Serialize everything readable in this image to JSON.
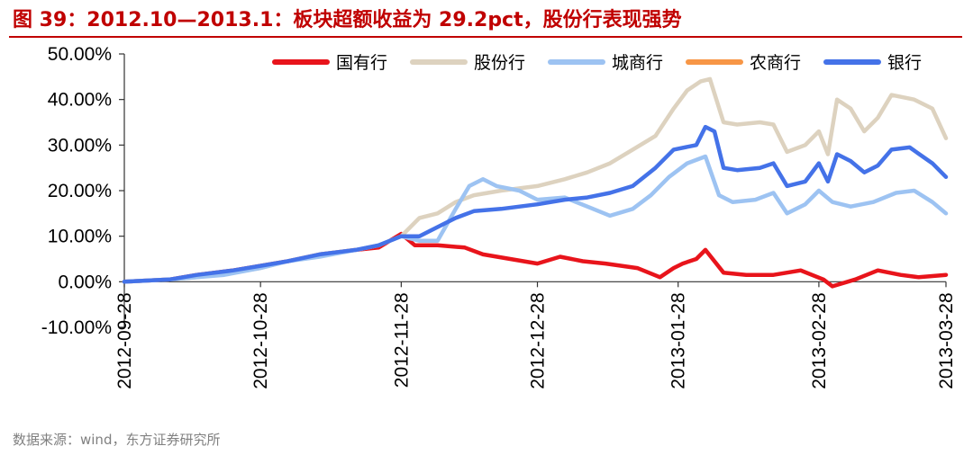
{
  "title": "图 39：2012.10—2013.1：板块超额收益为 29.2pct，股份行表现强势",
  "source": "数据来源：wind，东方证券研究所",
  "chart_data": {
    "type": "line",
    "x_ticks": [
      "2012-09-28",
      "2012-10-28",
      "2012-11-28",
      "2012-12-28",
      "2013-01-28",
      "2013-02-28",
      "2013-03-28"
    ],
    "y_ticks": [
      "-10.00%",
      "0.00%",
      "10.00%",
      "20.00%",
      "30.00%",
      "40.00%",
      "50.00%"
    ],
    "ylim": [
      -10,
      50
    ],
    "x_range": [
      "2012-09-28",
      "2013-03-28"
    ],
    "legend_position": "top",
    "series": [
      {
        "name": "国有行",
        "color": "#e8141b",
        "points": [
          [
            "2012-09-28",
            0
          ],
          [
            "2012-10-08",
            0.5
          ],
          [
            "2012-10-14",
            1.5
          ],
          [
            "2012-10-22",
            2.5
          ],
          [
            "2012-10-28",
            3.5
          ],
          [
            "2012-11-03",
            4.5
          ],
          [
            "2012-11-10",
            6
          ],
          [
            "2012-11-18",
            7
          ],
          [
            "2012-11-23",
            7.5
          ],
          [
            "2012-11-28",
            10.5
          ],
          [
            "2012-12-01",
            8
          ],
          [
            "2012-12-06",
            8
          ],
          [
            "2012-12-12",
            7.5
          ],
          [
            "2012-12-16",
            6
          ],
          [
            "2012-12-22",
            5
          ],
          [
            "2012-12-28",
            4
          ],
          [
            "2013-01-02",
            5.5
          ],
          [
            "2013-01-07",
            4.5
          ],
          [
            "2013-01-12",
            4
          ],
          [
            "2013-01-19",
            3
          ],
          [
            "2013-01-24",
            1
          ],
          [
            "2013-01-27",
            3
          ],
          [
            "2013-01-29",
            4
          ],
          [
            "2013-02-01",
            5
          ],
          [
            "2013-02-03",
            7
          ],
          [
            "2013-02-07",
            2
          ],
          [
            "2013-02-12",
            1.5
          ],
          [
            "2013-02-18",
            1.5
          ],
          [
            "2013-02-24",
            2.5
          ],
          [
            "2013-03-01",
            0.5
          ],
          [
            "2013-03-03",
            -1
          ],
          [
            "2013-03-08",
            0.5
          ],
          [
            "2013-03-13",
            2.5
          ],
          [
            "2013-03-18",
            1.5
          ],
          [
            "2013-03-22",
            1
          ],
          [
            "2013-03-28",
            1.5
          ]
        ]
      },
      {
        "name": "股份行",
        "color": "#ddd2bf",
        "points": [
          [
            "2012-09-28",
            0
          ],
          [
            "2012-10-08",
            0.5
          ],
          [
            "2012-10-14",
            1
          ],
          [
            "2012-10-22",
            2
          ],
          [
            "2012-10-28",
            3
          ],
          [
            "2012-11-03",
            4.5
          ],
          [
            "2012-11-10",
            6
          ],
          [
            "2012-11-18",
            7
          ],
          [
            "2012-11-23",
            8
          ],
          [
            "2012-11-28",
            10
          ],
          [
            "2012-12-02",
            14
          ],
          [
            "2012-12-06",
            15
          ],
          [
            "2012-12-10",
            17.5
          ],
          [
            "2012-12-14",
            19
          ],
          [
            "2012-12-20",
            20
          ],
          [
            "2012-12-28",
            21
          ],
          [
            "2013-01-03",
            22.5
          ],
          [
            "2013-01-08",
            24
          ],
          [
            "2013-01-13",
            26
          ],
          [
            "2013-01-18",
            29
          ],
          [
            "2013-01-23",
            32
          ],
          [
            "2013-01-27",
            38
          ],
          [
            "2013-01-30",
            42
          ],
          [
            "2013-02-02",
            44
          ],
          [
            "2013-02-04",
            44.5
          ],
          [
            "2013-02-07",
            35
          ],
          [
            "2013-02-10",
            34.5
          ],
          [
            "2013-02-15",
            35
          ],
          [
            "2013-02-18",
            34.5
          ],
          [
            "2013-02-21",
            28.5
          ],
          [
            "2013-02-25",
            30
          ],
          [
            "2013-02-28",
            33
          ],
          [
            "2013-03-02",
            28
          ],
          [
            "2013-03-04",
            40
          ],
          [
            "2013-03-07",
            38
          ],
          [
            "2013-03-10",
            33
          ],
          [
            "2013-03-13",
            36
          ],
          [
            "2013-03-16",
            41
          ],
          [
            "2013-03-21",
            40
          ],
          [
            "2013-03-25",
            38
          ],
          [
            "2013-03-28",
            31.5
          ]
        ]
      },
      {
        "name": "城商行",
        "color": "#9dc3f2",
        "points": [
          [
            "2012-09-28",
            0
          ],
          [
            "2012-10-08",
            0.5
          ],
          [
            "2012-10-14",
            1
          ],
          [
            "2012-10-20",
            1.5
          ],
          [
            "2012-10-28",
            3
          ],
          [
            "2012-11-03",
            4.5
          ],
          [
            "2012-11-10",
            5.5
          ],
          [
            "2012-11-18",
            7
          ],
          [
            "2012-11-23",
            8
          ],
          [
            "2012-11-28",
            10
          ],
          [
            "2012-12-02",
            9
          ],
          [
            "2012-12-06",
            9
          ],
          [
            "2012-12-10",
            16
          ],
          [
            "2012-12-13",
            21
          ],
          [
            "2012-12-16",
            22.5
          ],
          [
            "2012-12-19",
            21
          ],
          [
            "2012-12-24",
            20
          ],
          [
            "2012-12-28",
            18
          ],
          [
            "2013-01-03",
            18.5
          ],
          [
            "2013-01-08",
            16.5
          ],
          [
            "2013-01-13",
            14.5
          ],
          [
            "2013-01-18",
            16
          ],
          [
            "2013-01-22",
            19
          ],
          [
            "2013-01-26",
            23
          ],
          [
            "2013-01-30",
            26
          ],
          [
            "2013-02-03",
            27.5
          ],
          [
            "2013-02-06",
            19
          ],
          [
            "2013-02-09",
            17.5
          ],
          [
            "2013-02-14",
            18
          ],
          [
            "2013-02-18",
            19.5
          ],
          [
            "2013-02-21",
            15
          ],
          [
            "2013-02-25",
            17
          ],
          [
            "2013-02-28",
            20
          ],
          [
            "2013-03-03",
            17.5
          ],
          [
            "2013-03-07",
            16.5
          ],
          [
            "2013-03-12",
            17.5
          ],
          [
            "2013-03-17",
            19.5
          ],
          [
            "2013-03-21",
            20
          ],
          [
            "2013-03-25",
            17.5
          ],
          [
            "2013-03-28",
            15
          ]
        ]
      },
      {
        "name": "农商行",
        "color": "#f79646",
        "points": []
      },
      {
        "name": "银行",
        "color": "#4472e8",
        "points": [
          [
            "2012-09-28",
            0
          ],
          [
            "2012-10-08",
            0.5
          ],
          [
            "2012-10-14",
            1.5
          ],
          [
            "2012-10-22",
            2.5
          ],
          [
            "2012-10-28",
            3.5
          ],
          [
            "2012-11-03",
            4.5
          ],
          [
            "2012-11-10",
            6
          ],
          [
            "2012-11-18",
            7
          ],
          [
            "2012-11-23",
            8
          ],
          [
            "2012-11-28",
            10
          ],
          [
            "2012-12-02",
            10
          ],
          [
            "2012-12-06",
            12
          ],
          [
            "2012-12-10",
            14
          ],
          [
            "2012-12-14",
            15.5
          ],
          [
            "2012-12-20",
            16
          ],
          [
            "2012-12-28",
            17
          ],
          [
            "2013-01-03",
            18
          ],
          [
            "2013-01-08",
            18.5
          ],
          [
            "2013-01-13",
            19.5
          ],
          [
            "2013-01-18",
            21
          ],
          [
            "2013-01-23",
            25
          ],
          [
            "2013-01-27",
            29
          ],
          [
            "2013-02-01",
            30
          ],
          [
            "2013-02-03",
            34
          ],
          [
            "2013-02-05",
            33
          ],
          [
            "2013-02-07",
            25
          ],
          [
            "2013-02-10",
            24.5
          ],
          [
            "2013-02-15",
            25
          ],
          [
            "2013-02-18",
            26
          ],
          [
            "2013-02-21",
            21
          ],
          [
            "2013-02-25",
            22
          ],
          [
            "2013-02-28",
            26
          ],
          [
            "2013-03-02",
            22
          ],
          [
            "2013-03-04",
            28
          ],
          [
            "2013-03-07",
            26.5
          ],
          [
            "2013-03-10",
            24
          ],
          [
            "2013-03-13",
            25.5
          ],
          [
            "2013-03-16",
            29
          ],
          [
            "2013-03-20",
            29.5
          ],
          [
            "2013-03-25",
            26
          ],
          [
            "2013-03-28",
            23
          ]
        ]
      }
    ]
  }
}
